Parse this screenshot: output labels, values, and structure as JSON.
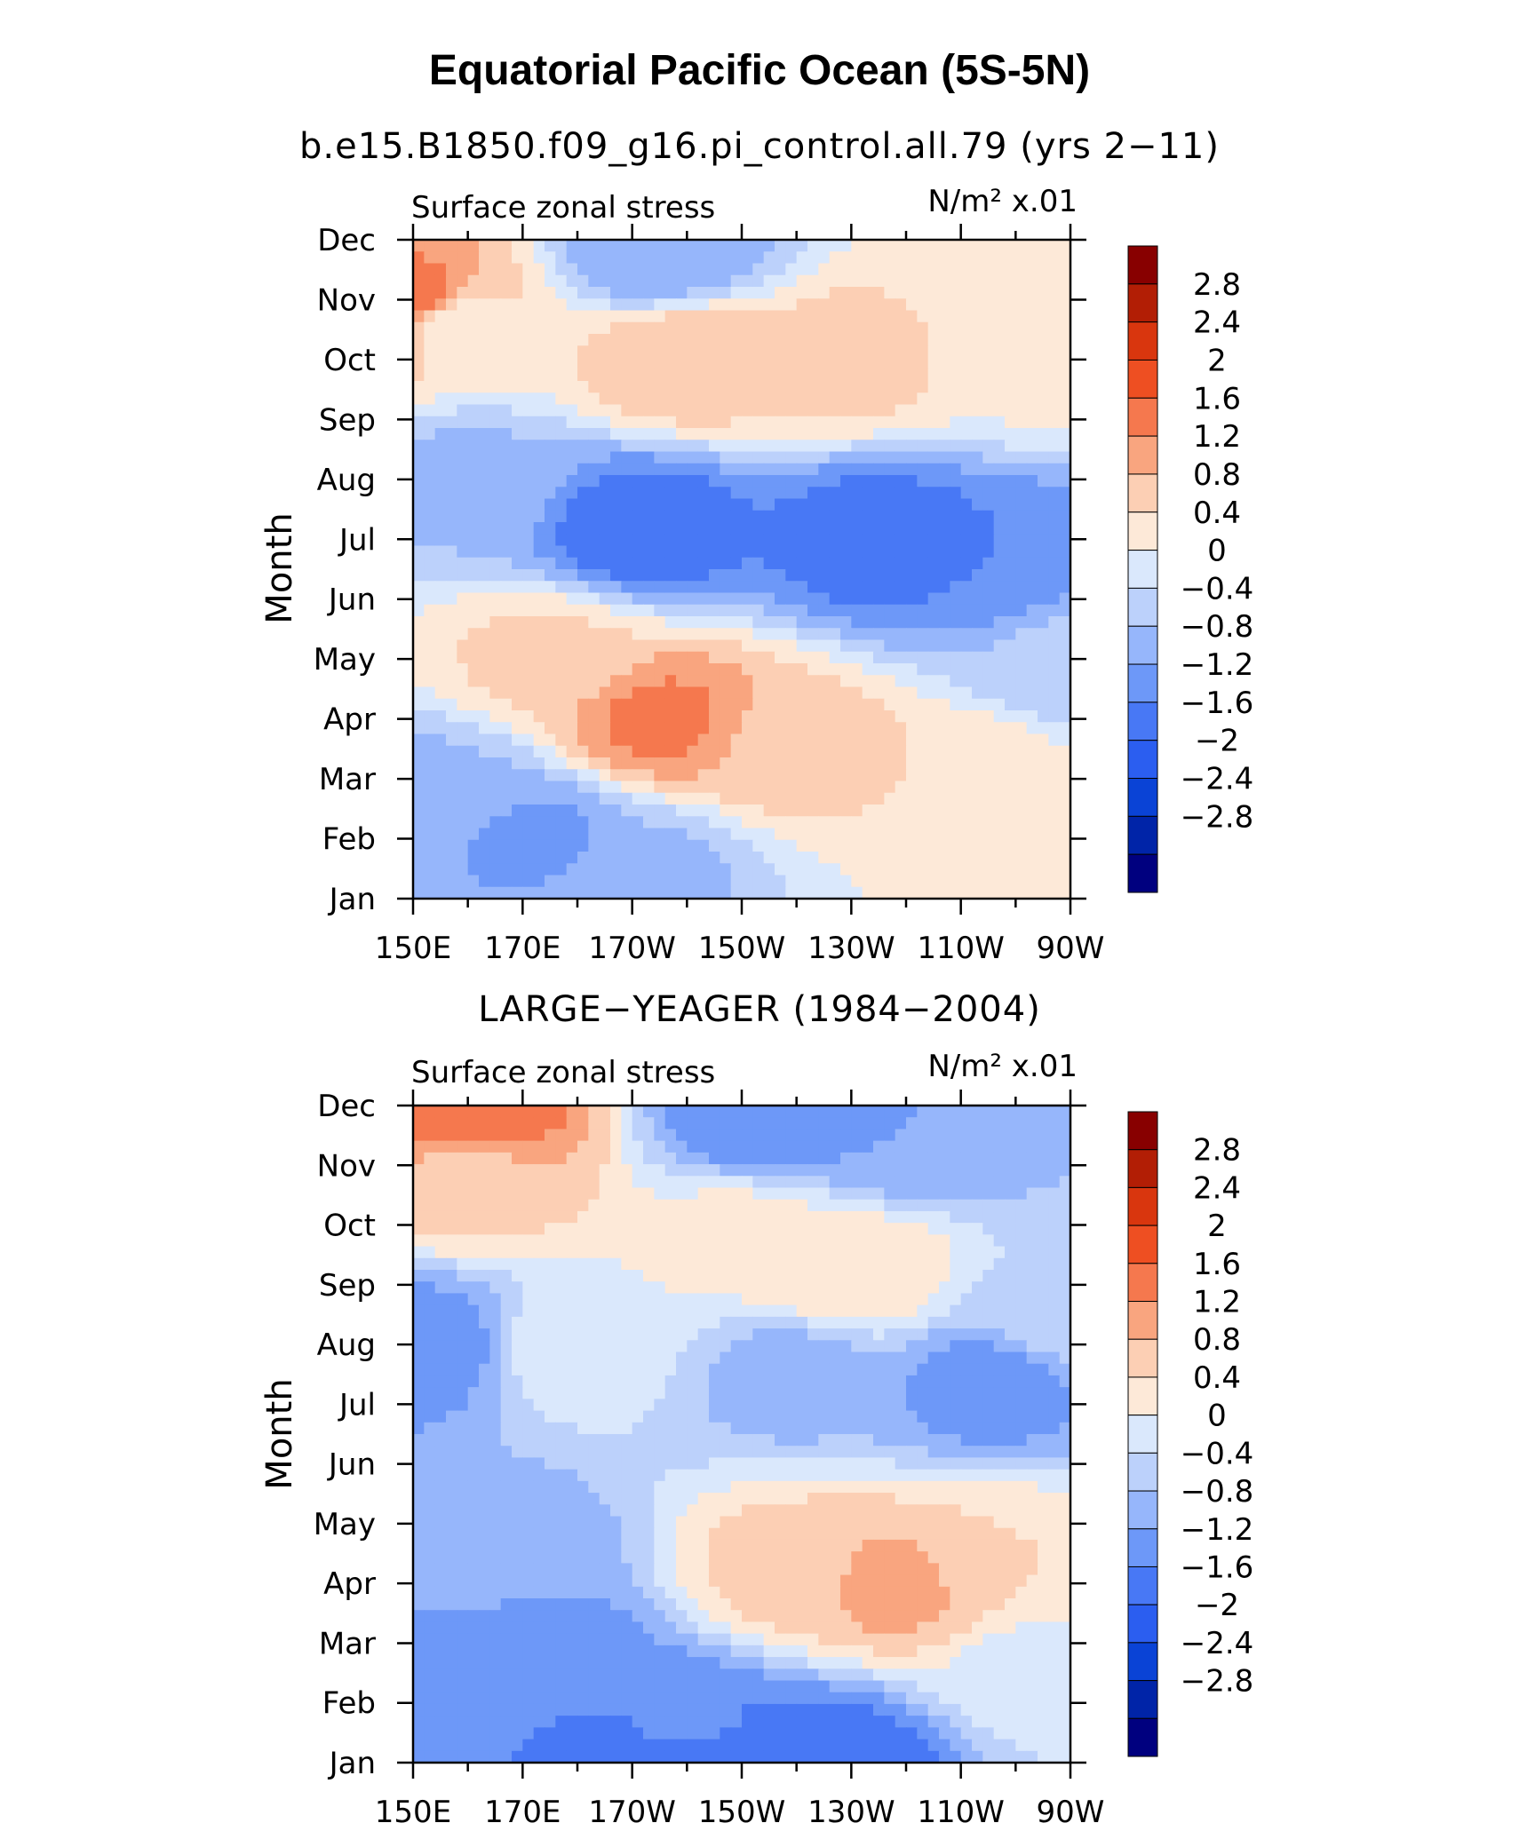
{
  "title": "Equatorial Pacific Ocean (5S-5N)",
  "chart_data": [
    {
      "type": "heatmap",
      "subtitle": "b.e15.B1850.f09_g16.pi_control.all.79 (yrs 2−11)",
      "left_label": "Surface zonal stress",
      "units_label": "N/m² x.01",
      "ylabel": "Month",
      "x_ticks": [
        "150E",
        "170E",
        "170W",
        "150W",
        "130W",
        "110W",
        "90W"
      ],
      "y_ticks": [
        "Jan",
        "Feb",
        "Mar",
        "Apr",
        "May",
        "Jun",
        "Jul",
        "Aug",
        "Sep",
        "Oct",
        "Nov",
        "Dec"
      ],
      "x_range_deg_east": [
        150,
        270
      ],
      "y_range_month": [
        1,
        12
      ],
      "nodes": [
        {
          "lon": 150,
          "month": 11,
          "value": 1.8
        },
        {
          "lon": 158,
          "month": 10.6,
          "value": 0.6
        },
        {
          "lon": 200,
          "month": 10,
          "value": 1.2
        },
        {
          "lon": 230,
          "month": 10,
          "value": 1.0
        },
        {
          "lon": 262,
          "month": 10,
          "value": 0.5
        },
        {
          "lon": 265,
          "month": 11.5,
          "value": 0.5
        },
        {
          "lon": 195,
          "month": 11.8,
          "value": -0.8
        },
        {
          "lon": 160,
          "month": 8,
          "value": -0.5
        },
        {
          "lon": 192,
          "month": 7.2,
          "value": -1.5
        },
        {
          "lon": 235,
          "month": 7,
          "value": -1.5
        },
        {
          "lon": 255,
          "month": 6.6,
          "value": -1.2
        },
        {
          "lon": 175,
          "month": 5,
          "value": 0.9
        },
        {
          "lon": 195,
          "month": 4,
          "value": 1.7
        },
        {
          "lon": 218,
          "month": 3.6,
          "value": 1.1
        },
        {
          "lon": 250,
          "month": 3,
          "value": 0.8
        },
        {
          "lon": 155,
          "month": 2.8,
          "value": -0.5
        },
        {
          "lon": 172,
          "month": 2,
          "value": -0.9
        },
        {
          "lon": 192,
          "month": 1.4,
          "value": -0.5
        },
        {
          "lon": 250,
          "month": 1,
          "value": 0.4
        },
        {
          "lon": 270,
          "month": 5,
          "value": -0.3
        }
      ]
    },
    {
      "type": "heatmap",
      "subtitle": "LARGE−YEAGER (1984−2004)",
      "left_label": "Surface zonal stress",
      "units_label": "N/m² x.01",
      "ylabel": "Month",
      "x_ticks": [
        "150E",
        "170E",
        "170W",
        "150W",
        "130W",
        "110W",
        "90W"
      ],
      "y_ticks": [
        "Jan",
        "Feb",
        "Mar",
        "Apr",
        "May",
        "Jun",
        "Jul",
        "Aug",
        "Sep",
        "Oct",
        "Nov",
        "Dec"
      ],
      "x_range_deg_east": [
        150,
        270
      ],
      "y_range_month": [
        1,
        12
      ],
      "nodes": [
        {
          "lon": 160,
          "month": 11.8,
          "value": 2.0
        },
        {
          "lon": 160,
          "month": 10.8,
          "value": 1.0
        },
        {
          "lon": 215,
          "month": 11.8,
          "value": -1.2
        },
        {
          "lon": 240,
          "month": 11.5,
          "value": -0.8
        },
        {
          "lon": 210,
          "month": 9.8,
          "value": 0.6
        },
        {
          "lon": 230,
          "month": 9.2,
          "value": 0.8
        },
        {
          "lon": 180,
          "month": 8,
          "value": 0.3
        },
        {
          "lon": 152,
          "month": 8,
          "value": -1.1
        },
        {
          "lon": 220,
          "month": 7.5,
          "value": -0.6
        },
        {
          "lon": 255,
          "month": 7.3,
          "value": -1.0
        },
        {
          "lon": 220,
          "month": 4.2,
          "value": 1.0
        },
        {
          "lon": 238,
          "month": 4,
          "value": 1.4
        },
        {
          "lon": 255,
          "month": 4.4,
          "value": 0.8
        },
        {
          "lon": 167,
          "month": 4.5,
          "value": -0.6
        },
        {
          "lon": 172,
          "month": 2.7,
          "value": -1.2
        },
        {
          "lon": 200,
          "month": 1.5,
          "value": -1.1
        },
        {
          "lon": 225,
          "month": 1,
          "value": -1.6
        },
        {
          "lon": 200,
          "month": 1.1,
          "value": -1.5
        },
        {
          "lon": 265,
          "month": 2.5,
          "value": 0.2
        },
        {
          "lon": 270,
          "month": 8.5,
          "value": -0.1
        }
      ]
    }
  ],
  "colorbar": {
    "labels": [
      "2.8",
      "2.4",
      "2",
      "1.6",
      "1.2",
      "0.8",
      "0.4",
      "0",
      "−0.4",
      "−0.8",
      "−1.2",
      "−1.6",
      "−2",
      "−2.4",
      "−2.8"
    ],
    "levels": [
      -2.8,
      -2.4,
      -2,
      -1.6,
      -1.2,
      -0.8,
      -0.4,
      0,
      0.4,
      0.8,
      1.2,
      1.6,
      2,
      2.4,
      2.8
    ],
    "colors_low_to_high": [
      "#00007f",
      "#0024a8",
      "#0a43d6",
      "#2b5ef0",
      "#4878f5",
      "#6d98f8",
      "#96b6fb",
      "#bcd1fb",
      "#dae8fc",
      "#fde9d8",
      "#fccfb4",
      "#f9a57f",
      "#f5784e",
      "#ee4f22",
      "#d9360e",
      "#b21e05",
      "#880000"
    ]
  }
}
